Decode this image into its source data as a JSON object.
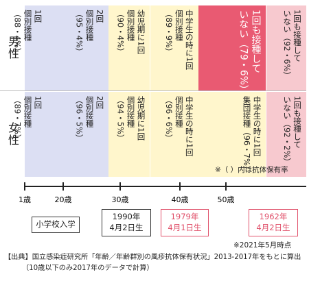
{
  "chart_data": {
    "type": "table",
    "rows": [
      {
        "label": "男性"
      },
      {
        "label": "女性"
      }
    ],
    "segments": [
      {
        "age_from": 1,
        "age_to": 12,
        "color": "#dcdff3",
        "male": "1回\n個別接種\n（88・4%）",
        "female": "1回\n個別接種\n（89・7%）"
      },
      {
        "age_from": 12,
        "age_to": 28,
        "color": "#dcdff3",
        "male": "2回\n個別接種\n（95・4%）",
        "female": "2回\n個別接種\n（96・5%）"
      },
      {
        "age_from": 28,
        "age_to": 35,
        "color": "#fff6cc",
        "male": "幼児期に1回\n個別接種\n（90・4%）",
        "female": "幼児期に1回\n個別接種\n（94・5%）"
      },
      {
        "age_from": 35,
        "age_to": 44,
        "color": "#fff6cc",
        "male": "中学生の時に1回\n個別接種\n（89・9%）",
        "female": "中学生の時に1回\n個別接種\n（96・6%）"
      },
      {
        "age_from": 44,
        "age_to": 59,
        "color_male": "#e95a72",
        "color_female": "#fff6cc",
        "male": "1回も接種して\nいない（79・6%）",
        "female": "中学生の時に1回\n集団接種（96・7%）"
      },
      {
        "age_from": 59,
        "age_to": 68,
        "color": "#f7c9cf",
        "male": "1回も接種して\nいない（92・6%）",
        "female": "1回も接種して\nいない（92・2%）"
      }
    ],
    "note_parenthesis": "※（ ）内は抗体保有率",
    "axis_ticks": [
      "1歳",
      "20歳",
      "30歳",
      "40歳",
      "50歳"
    ],
    "axis_tick_values": [
      1,
      20,
      30,
      40,
      50
    ]
  },
  "milestones": [
    {
      "label": "小学校入学",
      "style": "plain"
    },
    {
      "label": "1990年\n4月2日生",
      "style": "plain"
    },
    {
      "label": "1979年\n4月1日生",
      "style": "red"
    },
    {
      "label": "1962年\n4月2日生",
      "style": "red"
    }
  ],
  "footer": {
    "date_note": "※2021年5月時点",
    "source_line1": "【出典】国立感染症研究所「年齢／年齢群別の風疹抗体保有状況」2013-2017年をもとに算出",
    "source_line2": "（10歳以下のみ2017年のデータで計算）"
  },
  "colors": {
    "blue": "#dcdff3",
    "yellow": "#fff6cc",
    "red": "#e95a72",
    "pink": "#f7c9cf",
    "accent_text": "#e0506a"
  }
}
